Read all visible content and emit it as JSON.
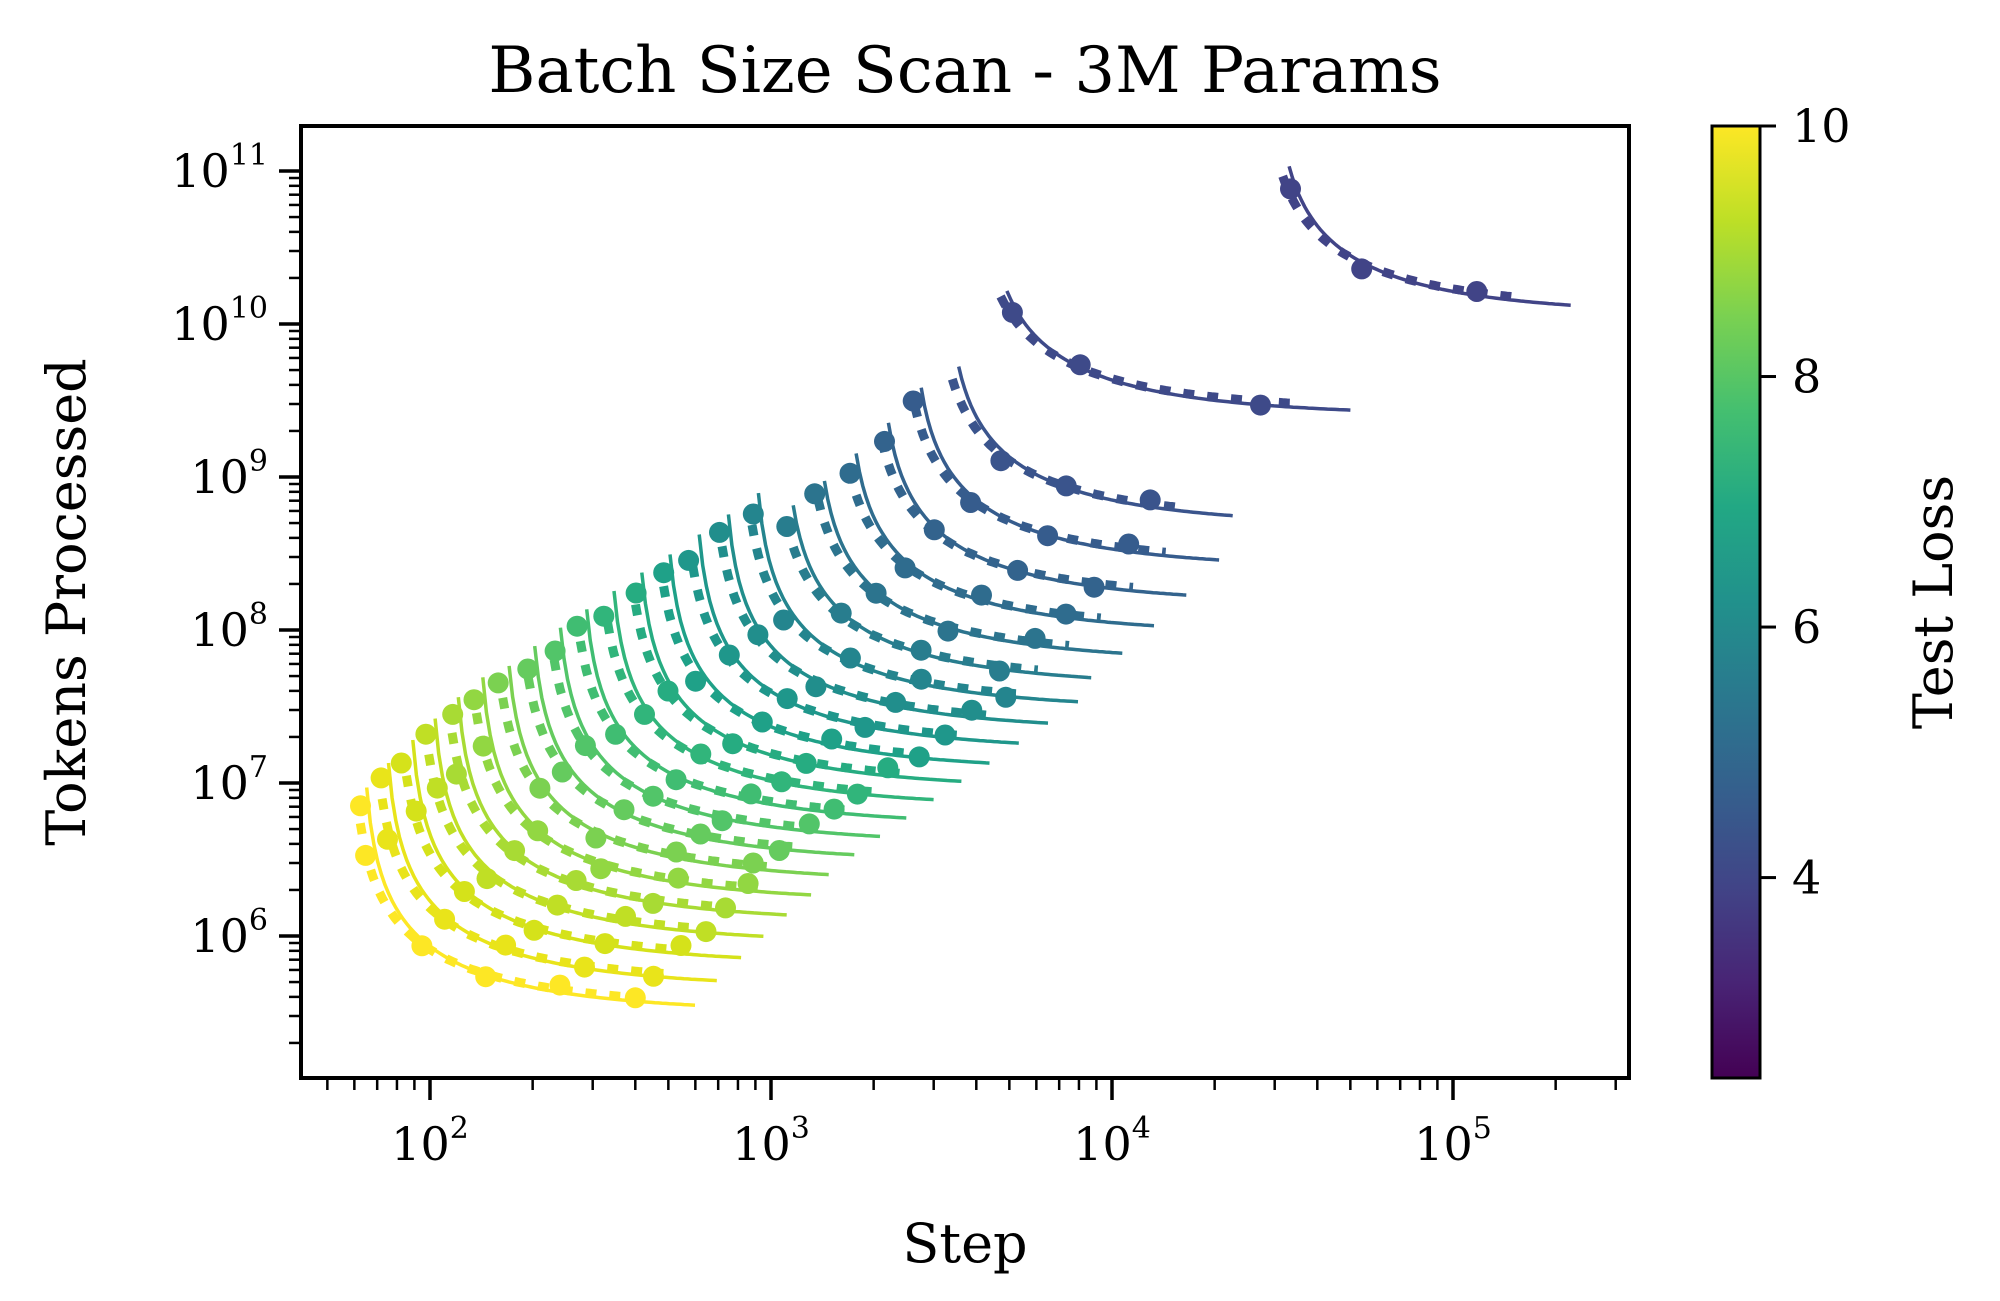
{
  "chart_data": {
    "type": "line+scatter",
    "title": "Batch Size Scan - 3M Params",
    "x_axis": {
      "label": "Step",
      "scale": "log",
      "range_log10": [
        1.6,
        5.52
      ],
      "major_tick_exponents": [
        2,
        3,
        4,
        5
      ]
    },
    "y_axis": {
      "label": "Tokens Processed",
      "scale": "log",
      "range_log10": [
        5.07,
        11.29
      ],
      "major_tick_exponents": [
        6,
        7,
        8,
        9,
        10,
        11
      ]
    },
    "colorbar": {
      "label": "Test Loss",
      "vmin": 2.4,
      "vmax": 10,
      "ticks": [
        10,
        8,
        6,
        4
      ],
      "colormap": "viridis",
      "gradient_top_to_bottom": [
        {
          "o": 0.0,
          "c": "#fde725"
        },
        {
          "o": 0.1,
          "c": "#bddf26"
        },
        {
          "o": 0.2,
          "c": "#7ad151"
        },
        {
          "o": 0.3,
          "c": "#44bf70"
        },
        {
          "o": 0.4,
          "c": "#22a884"
        },
        {
          "o": 0.5,
          "c": "#21918c"
        },
        {
          "o": 0.6,
          "c": "#2a788e"
        },
        {
          "o": 0.7,
          "c": "#355f8d"
        },
        {
          "o": 0.8,
          "c": "#414487"
        },
        {
          "o": 0.9,
          "c": "#482475"
        },
        {
          "o": 1.0,
          "c": "#440154"
        }
      ]
    },
    "series_description": "Each series is one iso-test-loss level. Solid line = fitted step/tokens tradeoff hyperbola tokens(S)=d_min/(1-s_min/S); dotted line = empirical trajectory (s_min x0.93, d_min x1.07); circle markers = training runs at different batch sizes placed at step = 0.93*s_min*m for each m in marker_m.",
    "series": [
      {
        "loss": 10.0,
        "color": "#fde725",
        "s_min": 63,
        "d_min": 316000,
        "m_start": 1.035,
        "m_end": 9.5,
        "marker_m": [
          1.05,
          1.12,
          1.6,
          2.5,
          4.1,
          6.8
        ]
      },
      {
        "loss": 9.73,
        "color": "#e9e41a",
        "s_min": 73,
        "d_min": 457000,
        "m_start": 1.035,
        "m_end": 9.5,
        "marker_m": [
          1.05,
          1.12,
          1.6,
          2.5,
          4.1,
          6.8
        ]
      },
      {
        "loss": 9.46,
        "color": "#d5e21a",
        "s_min": 86,
        "d_min": 646000,
        "m_start": 1.035,
        "m_end": 9.5,
        "marker_m": [
          1.05,
          1.12,
          1.6,
          2.5,
          4.1,
          6.8
        ]
      },
      {
        "loss": 9.19,
        "color": "#c0df25",
        "s_min": 100,
        "d_min": 891000,
        "m_start": 1.035,
        "m_end": 9.5,
        "marker_m": [
          1.05,
          1.12,
          1.6,
          2.5,
          4.1,
          6.8
        ]
      },
      {
        "loss": 8.92,
        "color": "#a8db34",
        "s_min": 117,
        "d_min": 1230000,
        "m_start": 1.035,
        "m_end": 9.5,
        "marker_m": [
          1.05,
          1.12,
          1.6,
          2.5,
          4.1,
          6.8
        ]
      },
      {
        "loss": 8.65,
        "color": "#92d742",
        "s_min": 138,
        "d_min": 1660000,
        "m_start": 1.035,
        "m_end": 9.5,
        "marker_m": [
          1.05,
          1.12,
          1.6,
          2.5,
          4.1,
          6.8
        ]
      },
      {
        "loss": 8.38,
        "color": "#7bd151",
        "s_min": 164,
        "d_min": 2240000,
        "m_start": 1.04,
        "m_end": 9.0,
        "marker_m": [
          1.06,
          1.35,
          2.05,
          3.4,
          5.9
        ]
      },
      {
        "loss": 8.11,
        "color": "#65cb5e",
        "s_min": 195,
        "d_min": 3020000,
        "m_start": 1.04,
        "m_end": 9.0,
        "marker_m": [
          1.06,
          1.35,
          2.05,
          3.4,
          5.9
        ]
      },
      {
        "loss": 7.84,
        "color": "#52c569",
        "s_min": 232,
        "d_min": 3980000,
        "m_start": 1.04,
        "m_end": 9.0,
        "marker_m": [
          1.06,
          1.35,
          2.05,
          3.4,
          5.9
        ]
      },
      {
        "loss": 7.57,
        "color": "#40bd72",
        "s_min": 277,
        "d_min": 5250000,
        "m_start": 1.04,
        "m_end": 9.0,
        "marker_m": [
          1.06,
          1.35,
          2.05,
          3.4,
          5.9
        ]
      },
      {
        "loss": 7.3,
        "color": "#31b57b",
        "s_min": 333,
        "d_min": 6920000,
        "m_start": 1.04,
        "m_end": 9.0,
        "marker_m": [
          1.06,
          1.35,
          2.05,
          3.4,
          5.9
        ]
      },
      {
        "loss": 7.03,
        "color": "#26ac81",
        "s_min": 402,
        "d_min": 9120000,
        "m_start": 1.04,
        "m_end": 9.0,
        "marker_m": [
          1.06,
          1.35,
          2.05,
          3.4,
          5.9
        ]
      },
      {
        "loss": 6.76,
        "color": "#1fa188",
        "s_min": 486,
        "d_min": 12000000,
        "m_start": 1.04,
        "m_end": 9.0,
        "marker_m": [
          1.06,
          1.35,
          2.05,
          3.4,
          5.9
        ]
      },
      {
        "loss": 6.49,
        "color": "#1f978b",
        "s_min": 592,
        "d_min": 16200000,
        "m_start": 1.04,
        "m_end": 9.0,
        "marker_m": [
          1.06,
          1.35,
          2.05,
          3.4,
          5.9
        ]
      },
      {
        "loss": 6.22,
        "color": "#218e8c",
        "s_min": 721,
        "d_min": 21900000,
        "m_start": 1.04,
        "m_end": 9.0,
        "marker_m": [
          1.06,
          1.35,
          2.05,
          3.4,
          5.9
        ]
      },
      {
        "loss": 5.95,
        "color": "#24858e",
        "s_min": 883,
        "d_min": 30200000,
        "m_start": 1.04,
        "m_end": 9.0,
        "marker_m": [
          1.06,
          1.35,
          2.05,
          3.4,
          5.9
        ]
      },
      {
        "loss": 5.68,
        "color": "#287d8e",
        "s_min": 1086,
        "d_min": 42700000,
        "m_start": 1.07,
        "m_end": 8.0,
        "marker_m": [
          1.1,
          1.6,
          2.7,
          4.7
        ]
      },
      {
        "loss": 5.41,
        "color": "#2c748e",
        "s_min": 1340,
        "d_min": 61700000,
        "m_start": 1.07,
        "m_end": 8.0,
        "marker_m": [
          1.1,
          1.6,
          2.7,
          4.7
        ]
      },
      {
        "loss": 5.14,
        "color": "#2f6c8e",
        "s_min": 1660,
        "d_min": 93300000,
        "m_start": 1.07,
        "m_end": 8.0,
        "marker_m": [
          1.1,
          1.6,
          2.7,
          4.7
        ]
      },
      {
        "loss": 4.87,
        "color": "#33638d",
        "s_min": 2065,
        "d_min": 148000000,
        "m_start": 1.07,
        "m_end": 8.0,
        "marker_m": [
          1.1,
          1.6,
          2.7,
          4.7
        ]
      },
      {
        "loss": 4.6,
        "color": "#365c8d",
        "s_min": 2576,
        "d_min": 251000000,
        "m_start": 1.07,
        "m_end": 8.0,
        "marker_m": [
          1.1,
          1.6,
          2.7,
          4.7
        ]
      },
      {
        "loss": 4.33,
        "color": "#3a548c",
        "s_min": 3228,
        "d_min": 479000000,
        "m_start": 1.1,
        "m_end": 7.0,
        "marker_m": [
          1.6,
          2.4,
          4.4
        ]
      },
      {
        "loss": 4.06,
        "color": "#3e4a89",
        "s_min": 4169,
        "d_min": 2510000000,
        "m_start": 1.18,
        "m_end": 12.0,
        "marker_m": [
          1.3,
          2.1,
          7.0
        ]
      },
      {
        "loss": 3.79,
        "color": "#414487",
        "s_min": 29512,
        "d_min": 11500000000,
        "m_start": 1.12,
        "m_end": 7.5,
        "marker_m": [
          1.2,
          2.0,
          4.2
        ]
      }
    ]
  }
}
